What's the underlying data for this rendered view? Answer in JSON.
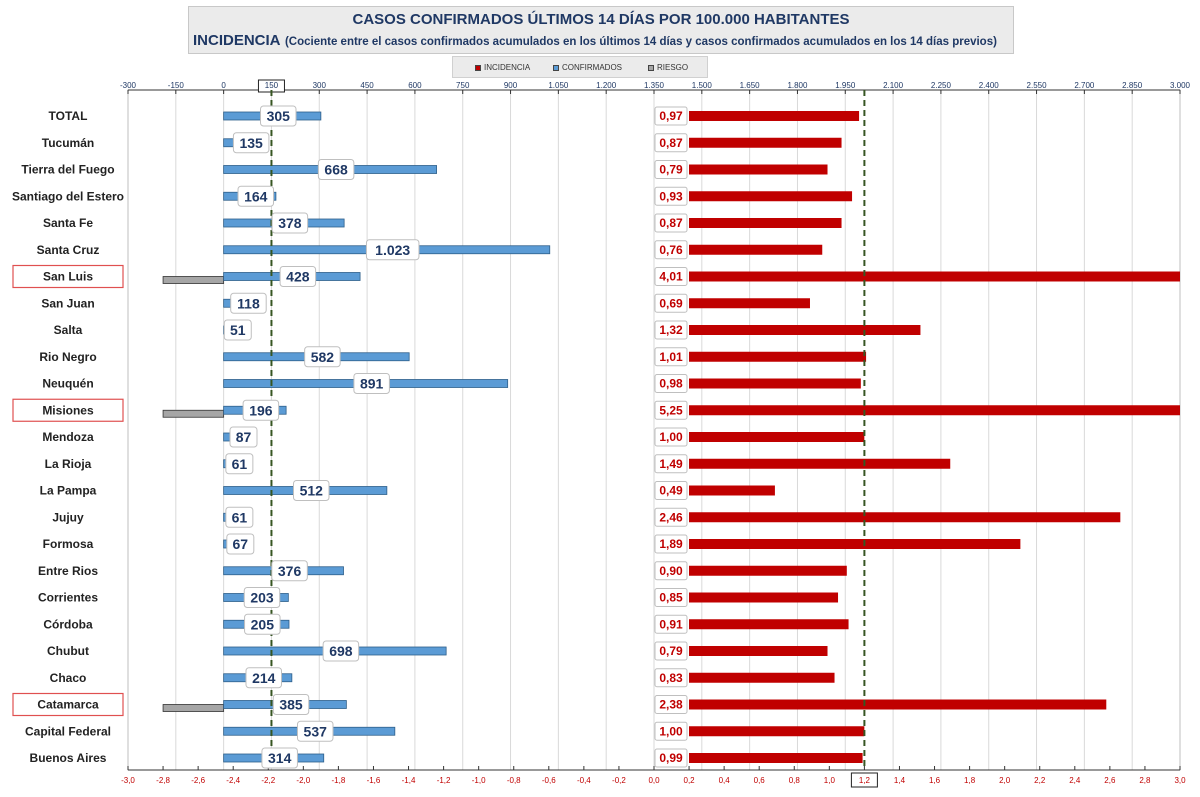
{
  "title": {
    "line1": "CASOS CONFIRMADOS ÚLTIMOS 14 DÍAS POR 100.000 HABITANTES",
    "line2_big": "INCIDENCIA",
    "line2_small": "(Cociente entre el casos confirmados acumulados en los últimos 14 días y casos confirmados acumulados en los 14 días previos)"
  },
  "legend": {
    "incidencia": "INCIDENCIA",
    "confirmados": "CONFIRMADOS",
    "riesgo": "RIESGO"
  },
  "colors": {
    "incidencia": "#c00000",
    "confirmados": "#5b9bd5",
    "riesgo": "#a6a6a6",
    "title": "#1f3864",
    "reference": "#375623",
    "highlight": "#e05050"
  },
  "chart_data": {
    "type": "bar",
    "orientation": "horizontal",
    "categories": [
      "TOTAL",
      "Tucumán",
      "Tierra del Fuego",
      "Santiago del Estero",
      "Santa Fe",
      "Santa Cruz",
      "San Luis",
      "San Juan",
      "Salta",
      "Rio Negro",
      "Neuquén",
      "Misiones",
      "Mendoza",
      "La Rioja",
      "La Pampa",
      "Jujuy",
      "Formosa",
      "Entre Rios",
      "Corrientes",
      "Córdoba",
      "Chubut",
      "Chaco",
      "Catamarca",
      "Capital Federal",
      "Buenos Aires"
    ],
    "highlighted": [
      "San Luis",
      "Misiones",
      "Catamarca"
    ],
    "series": [
      {
        "name": "CONFIRMADOS",
        "axis": "top",
        "values": [
          305,
          135,
          668,
          164,
          378,
          1023,
          428,
          118,
          51,
          582,
          891,
          196,
          87,
          61,
          512,
          61,
          67,
          376,
          203,
          205,
          698,
          214,
          385,
          537,
          314
        ],
        "labels": [
          "305",
          "135",
          "668",
          "164",
          "378",
          "1.023",
          "428",
          "118",
          "51",
          "582",
          "891",
          "196",
          "87",
          "61",
          "512",
          "61",
          "67",
          "376",
          "203",
          "205",
          "698",
          "214",
          "385",
          "537",
          "314"
        ]
      },
      {
        "name": "INCIDENCIA",
        "axis": "bottom",
        "values": [
          0.97,
          0.87,
          0.79,
          0.93,
          0.87,
          0.76,
          4.01,
          0.69,
          1.32,
          1.01,
          0.98,
          5.25,
          1.0,
          1.49,
          0.49,
          2.46,
          1.89,
          0.9,
          0.85,
          0.91,
          0.79,
          0.83,
          2.38,
          1.0,
          0.99
        ],
        "labels": [
          "0,97",
          "0,87",
          "0,79",
          "0,93",
          "0,87",
          "0,76",
          "4,01",
          "0,69",
          "1,32",
          "1,01",
          "0,98",
          "5,25",
          "1,00",
          "1,49",
          "0,49",
          "2,46",
          "1,89",
          "0,90",
          "0,85",
          "0,91",
          "0,79",
          "0,83",
          "2,38",
          "1,00",
          "0,99"
        ]
      },
      {
        "name": "RIESGO",
        "axis": "bottom",
        "values": [
          null,
          null,
          null,
          null,
          null,
          null,
          -2.8,
          null,
          null,
          null,
          null,
          -2.8,
          null,
          null,
          null,
          null,
          null,
          null,
          null,
          null,
          null,
          null,
          -2.8,
          null,
          null
        ]
      }
    ],
    "top_axis": {
      "range": [
        -300,
        3000
      ],
      "tick_values": [
        -300,
        -150,
        0,
        150,
        300,
        450,
        600,
        750,
        900,
        1050,
        1200,
        1350,
        1500,
        1650,
        1800,
        1950,
        2100,
        2250,
        2400,
        2550,
        2700,
        2850,
        3000
      ],
      "tick_labels": [
        "-300",
        "-150",
        "0",
        "150",
        "300",
        "450",
        "600",
        "750",
        "900",
        "1.050",
        "1.200",
        "1.350",
        "1.500",
        "1.650",
        "1.800",
        "1.950",
        "2.100",
        "2.250",
        "2.400",
        "2.550",
        "2.700",
        "2.850",
        "3.000"
      ],
      "reference_line": 150,
      "reference_label": "150"
    },
    "bottom_axis": {
      "range": [
        -3.0,
        3.0
      ],
      "tick_values": [
        -3.0,
        -2.8,
        -2.6,
        -2.4,
        -2.2,
        -2.0,
        -1.8,
        -1.6,
        -1.4,
        -1.2,
        -1.0,
        -0.8,
        -0.6,
        -0.4,
        -0.2,
        0.0,
        0.2,
        0.4,
        0.6,
        0.8,
        1.0,
        1.2,
        1.4,
        1.6,
        1.8,
        2.0,
        2.2,
        2.4,
        2.6,
        2.8,
        3.0
      ],
      "tick_labels": [
        "-3,0",
        "-2,8",
        "-2,6",
        "-2,4",
        "-2,2",
        "-2,0",
        "-1,8",
        "-1,6",
        "-1,4",
        "-1,2",
        "-1,0",
        "-0,8",
        "-0,6",
        "-0,4",
        "-0,2",
        "0,0",
        "0,2",
        "0,4",
        "0,6",
        "0,8",
        "1,0",
        "1,2",
        "1,4",
        "1,6",
        "1,8",
        "2,0",
        "2,2",
        "2,4",
        "2,6",
        "2,8",
        "3,0"
      ],
      "reference_line": 1.2,
      "reference_label": "1,2"
    },
    "grid": true,
    "legend_position": "top"
  }
}
